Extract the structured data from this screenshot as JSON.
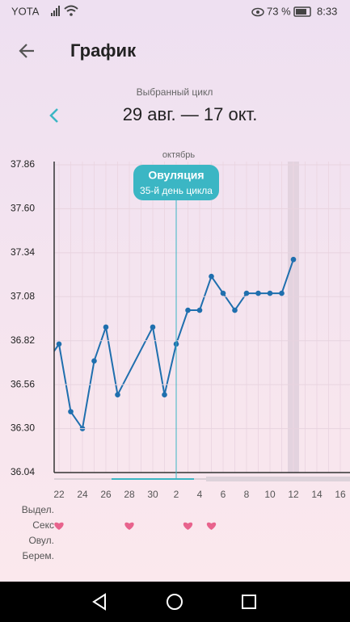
{
  "status_bar": {
    "carrier": "YOTA",
    "battery": "73 %",
    "time": "8:33"
  },
  "header": {
    "title": "График"
  },
  "cycle": {
    "caption": "Выбранный цикл",
    "range": "29 авг. — 17 окт."
  },
  "chart_data": {
    "type": "line",
    "month_label": "октябрь",
    "categories": [
      null,
      "22",
      null,
      "24",
      null,
      "26",
      null,
      "28",
      null,
      "30",
      null,
      "2",
      null,
      "4",
      null,
      "6",
      null,
      "8",
      null,
      "10",
      null,
      "12",
      null,
      "14",
      null,
      "16"
    ],
    "series": [
      {
        "color": "#1f6fae",
        "values": [
          36.7,
          36.8,
          36.4,
          36.3,
          36.7,
          36.9,
          36.5,
          null,
          null,
          36.9,
          36.5,
          36.8,
          37.0,
          37.0,
          37.2,
          37.1,
          37.0,
          37.1,
          37.1,
          37.1,
          37.1,
          37.3,
          null,
          null,
          null,
          null
        ]
      }
    ],
    "connect_gaps": true,
    "ylim": [
      36.04,
      37.86
    ],
    "yticks": [
      36.04,
      {
        "value": 36.3,
        "label": "36.30"
      },
      36.56,
      36.82,
      37.08,
      37.34,
      {
        "value": 37.6,
        "label": "37.60"
      },
      37.86
    ],
    "grid": true,
    "ovulation": {
      "title": "Овуляция",
      "subtitle": "35-й день цикла",
      "category": 11,
      "color": "#3bb6c4"
    },
    "highlight_category": 21,
    "event_rows": [
      {
        "label": "Выдел.",
        "days": []
      },
      {
        "label": "Секс",
        "days": [
          1,
          7,
          12,
          14
        ]
      },
      {
        "label": "Овул.",
        "days": []
      },
      {
        "label": "Берем.",
        "days": []
      }
    ]
  }
}
